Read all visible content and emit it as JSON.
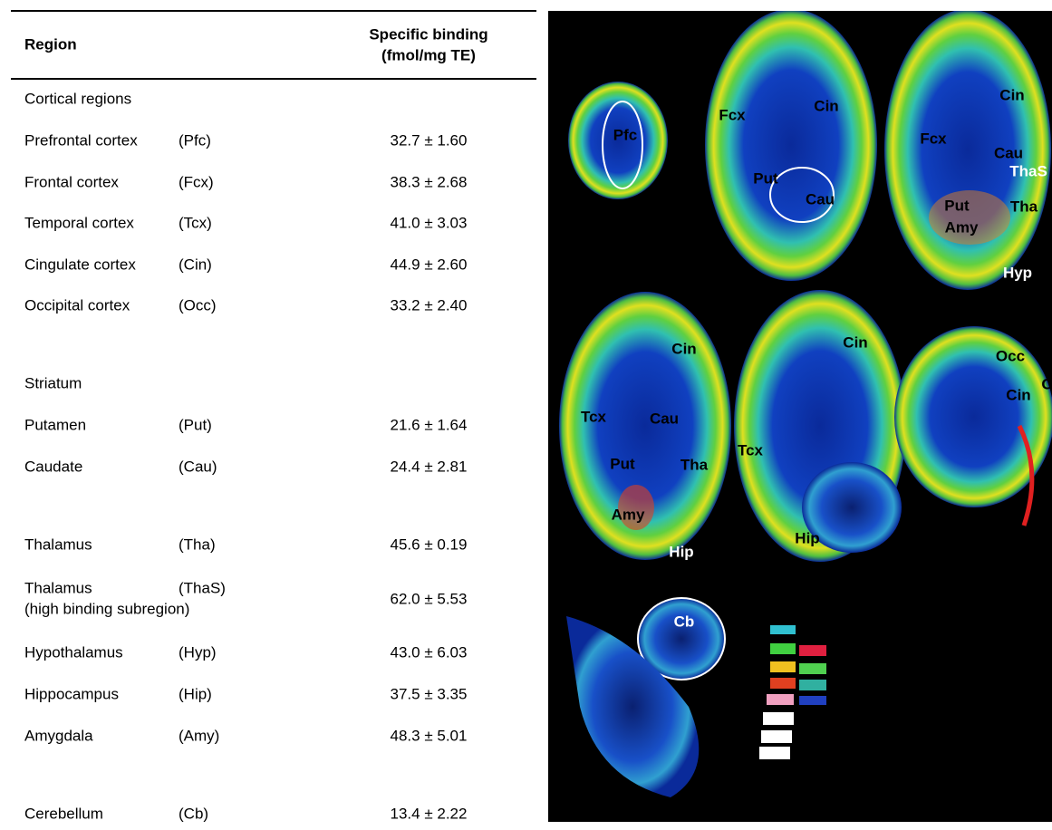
{
  "table": {
    "header": {
      "region": "Region",
      "binding": [
        "Specific binding",
        "(fmol/mg TE)"
      ]
    },
    "rows": [
      {
        "group": "Cortical regions"
      },
      {
        "region": "Prefrontal cortex",
        "abbr": "(Pfc)",
        "value": "32.7 ± 1.60"
      },
      {
        "region": "Frontal cortex",
        "abbr": "(Fcx)",
        "value": "38.3 ± 2.68"
      },
      {
        "region": "Temporal cortex",
        "abbr": "(Tcx)",
        "value": "41.0 ± 3.03"
      },
      {
        "region": "Cingulate cortex",
        "abbr": "(Cin)",
        "value": "44.9 ± 2.60"
      },
      {
        "region": "Occipital cortex",
        "abbr": "(Occ)",
        "value": "33.2 ± 2.40"
      },
      {
        "group": "Striatum"
      },
      {
        "region": "Putamen",
        "abbr": "(Put)",
        "value": "21.6 ± 1.64"
      },
      {
        "region": "Caudate",
        "abbr": "(Cau)",
        "value": "24.4 ± 2.81"
      },
      {
        "region": "Thalamus",
        "abbr": "(Tha)",
        "value": "45.6 ± 0.19"
      },
      {
        "region": "Thalamus",
        "note": "(high binding subregion)",
        "abbr": "(ThaS)",
        "value": "62.0 ± 5.53"
      },
      {
        "region": "Hypothalamus",
        "abbr": "(Hyp)",
        "value": "43.0 ± 6.03"
      },
      {
        "region": "Hippocampus",
        "abbr": "(Hip)",
        "value": "37.5 ± 3.35"
      },
      {
        "region": "Amygdala",
        "abbr": "(Amy)",
        "value": "48.3 ± 5.01"
      },
      {
        "region": "Cerebellum",
        "abbr": "(Cb)",
        "value": "13.4 ± 2.22"
      }
    ]
  },
  "image": {
    "labels": [
      "Pfc",
      "Fcx",
      "Cin",
      "Put",
      "Cau",
      "Cin",
      "Fcx",
      "Cau",
      "ThaS",
      "Put",
      "Tha",
      "Amy",
      "Hyp",
      "Cin",
      "Tcx",
      "Cau",
      "Put",
      "Tha",
      "Amy",
      "Hip",
      "Cin",
      "Tcx",
      "Hip",
      "Occ",
      "Cin",
      "O",
      "Cb"
    ]
  }
}
